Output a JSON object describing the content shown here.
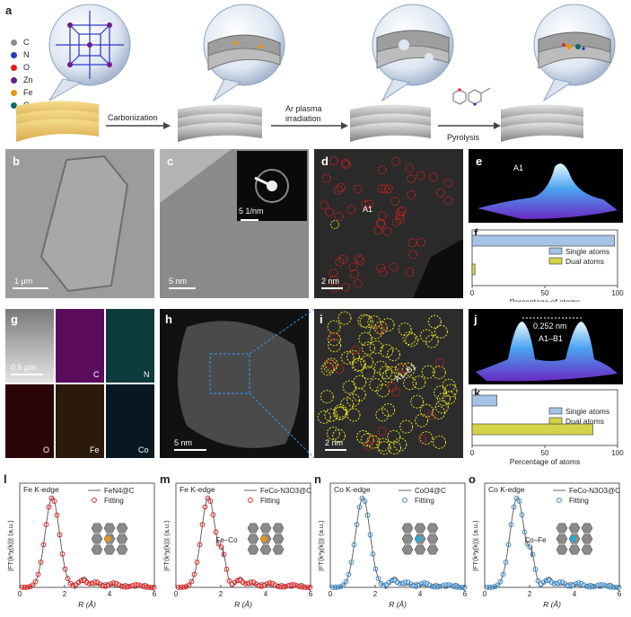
{
  "panels": {
    "a": "a",
    "b": "b",
    "c": "c",
    "d": "d",
    "e": "e",
    "f": "f",
    "g": "g",
    "h": "h",
    "i": "i",
    "j": "j",
    "k": "k",
    "l": "l",
    "m": "m",
    "n": "n",
    "o": "o"
  },
  "element_legend": [
    {
      "symbol": "C",
      "color": "#8c8c8c"
    },
    {
      "symbol": "N",
      "color": "#2b35c8"
    },
    {
      "symbol": "O",
      "color": "#e01b1b"
    },
    {
      "symbol": "Zn",
      "color": "#6a1e86"
    },
    {
      "symbol": "Fe",
      "color": "#e8951a"
    },
    {
      "symbol": "Co",
      "color": "#0e6a63"
    }
  ],
  "scheme": {
    "step1": "Carbonization",
    "step2": "Ar plasma irradiation",
    "step3": "Pyrolysis"
  },
  "scalebars": {
    "b": "1 μm",
    "c": "5 nm",
    "c_inset": "5 1/nm",
    "d": "2 nm",
    "g": "0.5 μm",
    "h": "5 nm",
    "i": "2 nm"
  },
  "eds_labels": [
    "C",
    "N",
    "O",
    "Fe",
    "Co"
  ],
  "annotations": {
    "d_site": "A1",
    "e_site": "A1",
    "i_site": "A1–B1",
    "j_dist": "0.252 nm",
    "j_site": "A1–B1",
    "m_peak": "Fe–Co",
    "o_peak": "Co–Fe"
  },
  "bar_xlabel": "Percentage of atoms",
  "bar_ticks": [
    "0",
    "50",
    "100"
  ],
  "exafs_ylabel": "|FT(k³χ(k))| (a.u.)",
  "exafs_xlabel": "R (Å)",
  "exafs_ticks": [
    "0",
    "2",
    "4",
    "6"
  ],
  "colors": {
    "single": "#a6c3e6",
    "dual": "#d4d44a",
    "fit_red": "#e02020",
    "fit_blue": "#3b86c4",
    "exp": "#555555"
  },
  "chart_data": [
    {
      "type": "bar",
      "panel": "f",
      "categories": [
        "Single atoms",
        "Dual atoms"
      ],
      "values": [
        98,
        2
      ],
      "xlim": [
        0,
        100
      ],
      "xlabel": "Percentage of atoms",
      "legend": [
        "Single atoms",
        "Dual atoms"
      ]
    },
    {
      "type": "bar",
      "panel": "k",
      "categories": [
        "Single atoms",
        "Dual atoms"
      ],
      "values": [
        17,
        83
      ],
      "xlim": [
        0,
        100
      ],
      "xlabel": "Percentage of atoms",
      "legend": [
        "Single atoms",
        "Dual atoms"
      ]
    },
    {
      "type": "line",
      "panel": "l",
      "title": "Fe K-edge",
      "xlabel": "R (Å)",
      "xlim": [
        0,
        6
      ],
      "series": [
        {
          "name": "FeN4@C"
        },
        {
          "name": "Fitting"
        }
      ],
      "peak": 1.45
    },
    {
      "type": "line",
      "panel": "m",
      "title": "Fe K-edge",
      "xlabel": "R (Å)",
      "xlim": [
        0,
        6
      ],
      "series": [
        {
          "name": "FeCo-N3O3@C"
        },
        {
          "name": "Fitting"
        }
      ],
      "peak": 1.45,
      "peak2": 2.1
    },
    {
      "type": "line",
      "panel": "n",
      "title": "Co K-edge",
      "xlabel": "R (Å)",
      "xlim": [
        0,
        6
      ],
      "series": [
        {
          "name": "CoO4@C"
        },
        {
          "name": "Fitting"
        }
      ],
      "peak": 1.45
    },
    {
      "type": "line",
      "panel": "o",
      "title": "Co K-edge",
      "xlabel": "R (Å)",
      "xlim": [
        0,
        6
      ],
      "series": [
        {
          "name": "FeCo-N3O3@C"
        },
        {
          "name": "Fitting"
        }
      ],
      "peak": 1.45,
      "peak2": 2.1
    }
  ]
}
